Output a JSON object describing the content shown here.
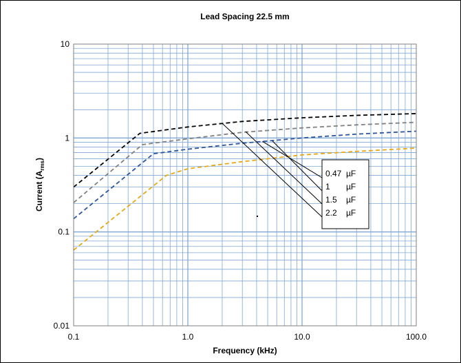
{
  "chart_data": {
    "type": "line",
    "title": "Lead Spacing 22.5 mm",
    "xlabel": "Frequency (kHz)",
    "ylabel": {
      "main": "Current (A",
      "sub": "rms",
      "close": ")"
    },
    "x_scale": "log",
    "y_scale": "log",
    "xlim": [
      0.1,
      100
    ],
    "ylim": [
      0.01,
      10
    ],
    "x_ticks": [
      {
        "value": 0.1,
        "label": "0.1"
      },
      {
        "value": 1,
        "label": "1.0"
      },
      {
        "value": 10,
        "label": "10.0"
      },
      {
        "value": 100,
        "label": "100.0"
      }
    ],
    "y_ticks": [
      {
        "value": 0.01,
        "label": "0.01"
      },
      {
        "value": 0.1,
        "label": "0.1"
      },
      {
        "value": 1,
        "label": "1"
      },
      {
        "value": 10,
        "label": "10"
      }
    ],
    "grid": true,
    "colors": {
      "grid": "#7fa7d6",
      "plot_border": "#7f7f7f"
    },
    "series": [
      {
        "name": "2.2 µF",
        "color": "#000000",
        "points": [
          [
            0.1,
            0.3
          ],
          [
            0.38,
            1.12
          ],
          [
            1,
            1.31
          ],
          [
            3,
            1.5
          ],
          [
            10,
            1.64
          ],
          [
            30,
            1.74
          ],
          [
            100,
            1.82
          ]
        ]
      },
      {
        "name": "1.5 µF",
        "color": "#808080",
        "points": [
          [
            0.1,
            0.205
          ],
          [
            0.4,
            0.85
          ],
          [
            1,
            0.98
          ],
          [
            3,
            1.15
          ],
          [
            10,
            1.28
          ],
          [
            30,
            1.38
          ],
          [
            100,
            1.47
          ]
        ]
      },
      {
        "name": "1 µF",
        "color": "#2f5597",
        "points": [
          [
            0.1,
            0.138
          ],
          [
            0.5,
            0.68
          ],
          [
            1,
            0.76
          ],
          [
            3,
            0.88
          ],
          [
            10,
            1.0
          ],
          [
            30,
            1.1
          ],
          [
            100,
            1.18
          ]
        ]
      },
      {
        "name": "0.47 µF",
        "color": "#e6a817",
        "points": [
          [
            0.1,
            0.064
          ],
          [
            0.65,
            0.4
          ],
          [
            1,
            0.47
          ],
          [
            3,
            0.56
          ],
          [
            10,
            0.66
          ],
          [
            30,
            0.72
          ],
          [
            100,
            0.78
          ]
        ]
      }
    ],
    "legend": {
      "placement": "center-right",
      "entries": [
        {
          "value": "0.47",
          "unit": "µF",
          "series": "0.47 µF",
          "anchor": [
            4.5,
            0.92
          ]
        },
        {
          "value": "1",
          "unit": "µF",
          "series": "1 µF",
          "anchor": [
            5.5,
            0.93
          ]
        },
        {
          "value": "1.5",
          "unit": "µF",
          "series": "1.5 µF",
          "anchor": [
            3.2,
            1.17
          ]
        },
        {
          "value": "2.2",
          "unit": "µF",
          "series": "2.2 µF",
          "anchor": [
            2.0,
            1.43
          ]
        }
      ]
    }
  }
}
